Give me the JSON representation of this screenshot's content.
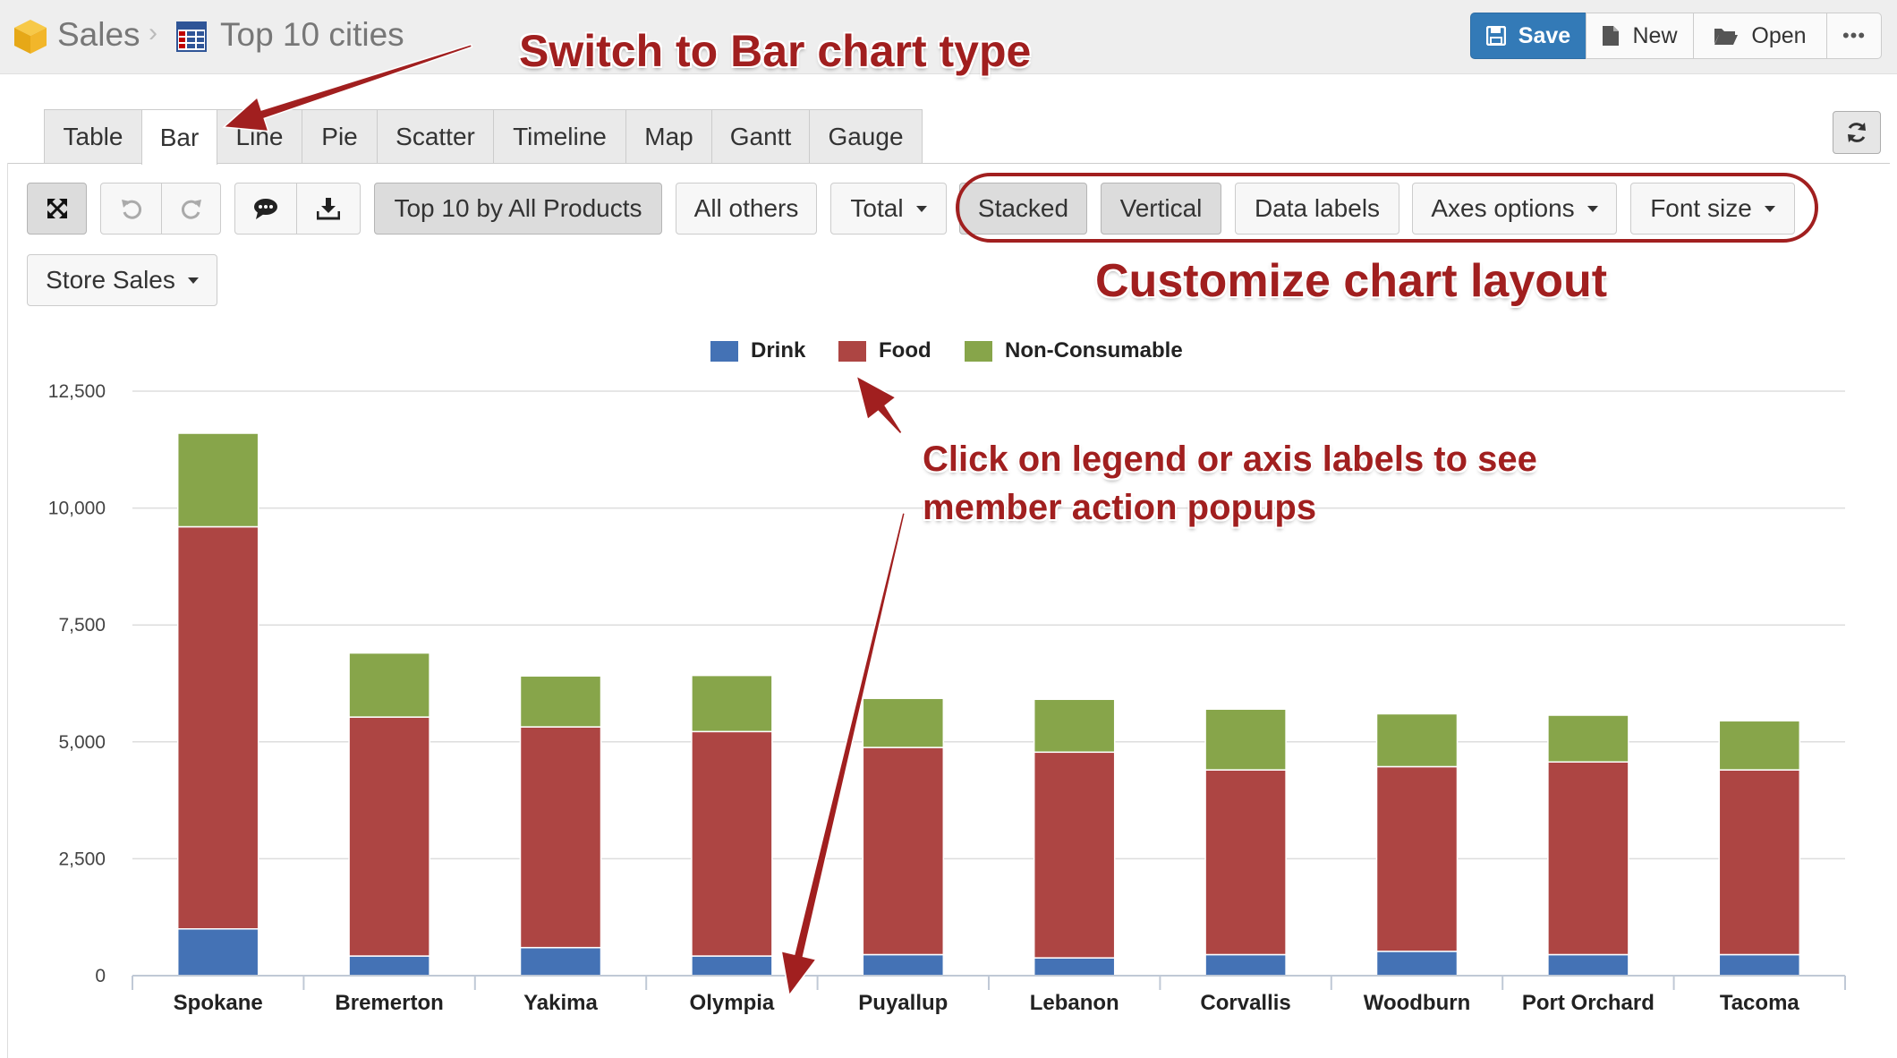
{
  "header": {
    "breadcrumb_root": "Sales",
    "breadcrumb_report": "Top 10 cities",
    "buttons": {
      "save": "Save",
      "new": "New",
      "open": "Open",
      "more": "•••"
    }
  },
  "tabs": [
    "Table",
    "Bar",
    "Line",
    "Pie",
    "Scatter",
    "Timeline",
    "Map",
    "Gantt",
    "Gauge"
  ],
  "active_tab": "Bar",
  "toolbar": {
    "top_filter": "Top 10 by All Products",
    "all_others": "All others",
    "total": "Total",
    "stacked": "Stacked",
    "vertical": "Vertical",
    "data_labels": "Data labels",
    "axes_options": "Axes options",
    "font_size": "Font size",
    "measure": "Store Sales"
  },
  "annotations": {
    "tab_hint": "Switch to Bar chart type",
    "layout_hint": "Customize chart layout",
    "legend_hint_line1": "Click on legend or axis labels to see",
    "legend_hint_line2": "member action popups",
    "arrow_color": "#a11f1f"
  },
  "colors": {
    "drink": "#4472b5",
    "food": "#ad4543",
    "non_consumable": "#87a54a",
    "accent": "#337ab7"
  },
  "chart_data": {
    "type": "bar",
    "stacked": true,
    "orientation": "vertical",
    "title": "",
    "xlabel": "",
    "ylabel": "",
    "ylim": [
      0,
      12500
    ],
    "yticks": [
      0,
      2500,
      5000,
      7500,
      10000,
      12500
    ],
    "ytick_labels": [
      "0",
      "2,500",
      "5,000",
      "7,500",
      "10,000",
      "12,500"
    ],
    "grid": true,
    "legend_position": "top-center",
    "categories": [
      "Spokane",
      "Bremerton",
      "Yakima",
      "Olympia",
      "Puyallup",
      "Lebanon",
      "Corvallis",
      "Woodburn",
      "Port Orchard",
      "Tacoma"
    ],
    "series": [
      {
        "name": "Drink",
        "color": "#4472b5",
        "values": [
          1000,
          420,
          600,
          420,
          450,
          380,
          450,
          520,
          450,
          450
        ]
      },
      {
        "name": "Food",
        "color": "#ad4543",
        "values": [
          8600,
          5110,
          4720,
          4800,
          4430,
          4400,
          3950,
          3950,
          4120,
          3950
        ]
      },
      {
        "name": "Non-Consumable",
        "color": "#87a54a",
        "values": [
          2000,
          1370,
          1090,
          1200,
          1050,
          1130,
          1300,
          1130,
          1000,
          1050
        ]
      }
    ]
  }
}
